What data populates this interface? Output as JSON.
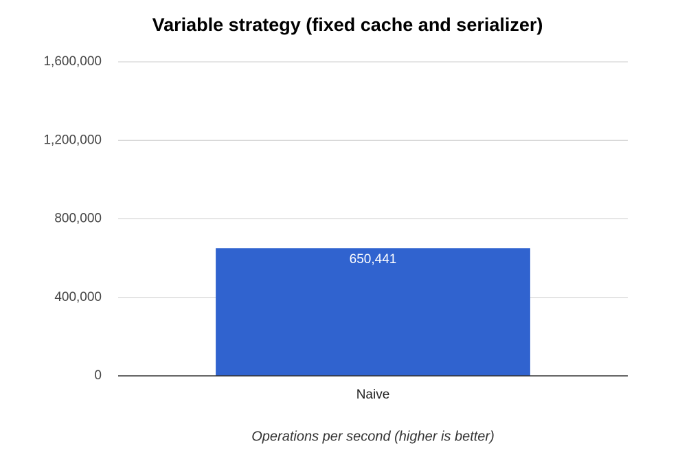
{
  "chart_data": {
    "type": "bar",
    "title": "Variable strategy (fixed cache and serializer)",
    "categories": [
      "Naive"
    ],
    "values": [
      650441
    ],
    "value_labels": [
      "650,441"
    ],
    "color": "#3063cf",
    "x_label": "Operations per second (higher is better)",
    "ylim": [
      0,
      1600000
    ],
    "yticks": [
      0,
      {
        "value": 400000,
        "label": "400,000"
      },
      {
        "value": 800000,
        "label": "800,000"
      },
      {
        "value": 1200000,
        "label": "1,200,000"
      },
      {
        "value": 1600000,
        "label": "1,600,000"
      }
    ],
    "grid": true
  }
}
